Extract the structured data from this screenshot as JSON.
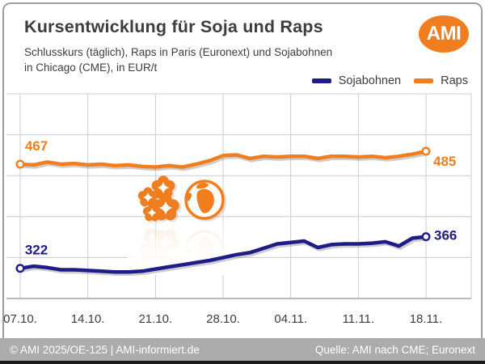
{
  "header": {
    "title": "Kursentwicklung für Soja und Raps",
    "subtitle_line1": "Schlusskurs (täglich), Raps in Paris (Euronext) und Sojabohnen",
    "subtitle_line2": "in Chicago (CME), in EUR/t"
  },
  "logo": {
    "text": "AMI"
  },
  "legend": {
    "items": [
      {
        "label": "Sojabohnen",
        "color": "#1E1C87"
      },
      {
        "label": "Raps",
        "color": "#F07D1E"
      }
    ]
  },
  "chart_data": {
    "type": "line",
    "title": "Kursentwicklung für Soja und Raps",
    "subtitle": "Schlusskurs (täglich), Raps in Paris (Euronext) und Sojabohnen in Chicago (CME), in EUR/t",
    "unit": "EUR/t",
    "x_tick_labels": [
      "07.10.",
      "14.10.",
      "21.10.",
      "28.10.",
      "04.11.",
      "11.11.",
      "18.11."
    ],
    "x_tick_indices": [
      0,
      5,
      10,
      15,
      20,
      25,
      30
    ],
    "n_points": 31,
    "ylim": [
      280,
      565
    ],
    "grid": true,
    "legend_position": "top-right",
    "series": [
      {
        "name": "Sojabohnen",
        "color": "#1E1C87",
        "first_value": 322,
        "last_value": 366,
        "values": [
          322,
          325,
          323,
          320,
          320,
          319,
          318,
          317,
          317,
          318,
          321,
          324,
          327,
          330,
          333,
          337,
          341,
          344,
          350,
          356,
          358,
          360,
          351,
          355,
          356,
          356,
          357,
          359,
          353,
          364,
          366
        ]
      },
      {
        "name": "Raps",
        "color": "#F07D1E",
        "first_value": 467,
        "last_value": 485,
        "values": [
          467,
          466,
          470,
          467,
          468,
          466,
          467,
          465,
          466,
          464,
          463,
          465,
          463,
          467,
          472,
          479,
          480,
          475,
          478,
          477,
          478,
          478,
          475,
          478,
          478,
          477,
          478,
          476,
          478,
          481,
          485
        ]
      }
    ]
  },
  "footer": {
    "left": "© AMI 2025/OE-125 | AMI-informiert.de",
    "right": "Quelle: AMI nach CME; Euronext"
  },
  "colors": {
    "orange": "#F07D1E",
    "blue": "#1E1C87",
    "grid": "#CCCCCC",
    "axis": "#A3A3A3",
    "text": "#3D3D3D",
    "footer_bg": "#ACACAC",
    "footer_text": "#FFFFFF",
    "card_border": "#9E9E9E",
    "bottom_strip": "#1A1A1A"
  }
}
